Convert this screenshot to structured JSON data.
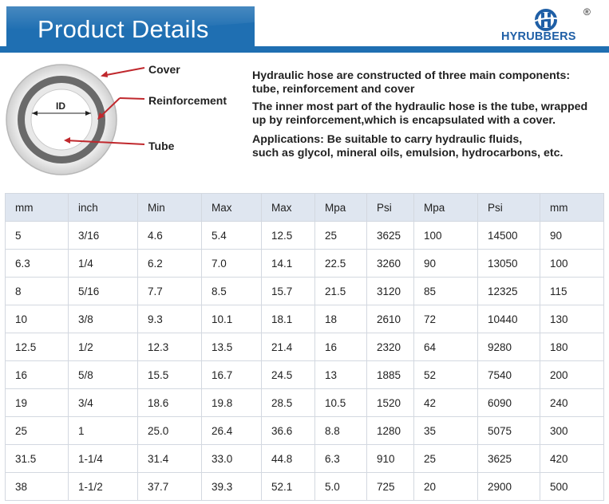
{
  "header": {
    "title": "Product Details",
    "logo_text": "HYRUBBERS",
    "registered_mark": "®"
  },
  "diagram": {
    "labels": {
      "cover": "Cover",
      "reinforcement": "Reinforcement",
      "tube": "Tube",
      "id": "ID"
    }
  },
  "description": {
    "line1": "Hydraulic hose are constructed of three main components:",
    "line2": "tube, reinforcement and cover",
    "line3": "The inner most part of the hydraulic hose is the tube, wrapped",
    "line4": "up by reinforcement,which is encapsulated with a cover.",
    "line5": "Applications: Be suitable to carry hydraulic fluids,",
    "line6": "such as glycol, mineral oils, emulsion, hydrocarbons, etc."
  },
  "table": {
    "headers": [
      "mm",
      "inch",
      "Min",
      "Max",
      "Max",
      "Mpa",
      "Psi",
      "Mpa",
      "Psi",
      "mm"
    ],
    "rows": [
      [
        "5",
        "3/16",
        "4.6",
        "5.4",
        "12.5",
        "25",
        "3625",
        "100",
        "14500",
        "90"
      ],
      [
        "6.3",
        "1/4",
        "6.2",
        "7.0",
        "14.1",
        "22.5",
        "3260",
        "90",
        "13050",
        "100"
      ],
      [
        "8",
        "5/16",
        "7.7",
        "8.5",
        "15.7",
        "21.5",
        "3120",
        "85",
        "12325",
        "115"
      ],
      [
        "10",
        "3/8",
        "9.3",
        "10.1",
        "18.1",
        "18",
        "2610",
        "72",
        "10440",
        "130"
      ],
      [
        "12.5",
        "1/2",
        "12.3",
        "13.5",
        "21.4",
        "16",
        "2320",
        "64",
        "9280",
        "180"
      ],
      [
        "16",
        "5/8",
        "15.5",
        "16.7",
        "24.5",
        "13",
        "1885",
        "52",
        "7540",
        "200"
      ],
      [
        "19",
        "3/4",
        "18.6",
        "19.8",
        "28.5",
        "10.5",
        "1520",
        "42",
        "6090",
        "240"
      ],
      [
        "25",
        "1",
        "25.0",
        "26.4",
        "36.6",
        "8.8",
        "1280",
        "35",
        "5075",
        "300"
      ],
      [
        "31.5",
        "1-1/4",
        "31.4",
        "33.0",
        "44.8",
        "6.3",
        "910",
        "25",
        "3625",
        "420"
      ],
      [
        "38",
        "1-1/2",
        "37.7",
        "39.3",
        "52.1",
        "5.0",
        "725",
        "20",
        "2900",
        "500"
      ]
    ]
  },
  "colors": {
    "brand_blue": "#1f6fb2",
    "logo_blue": "#1f5fa6",
    "header_row_bg": "#dfe6f0",
    "arrow_red": "#c0282d"
  }
}
